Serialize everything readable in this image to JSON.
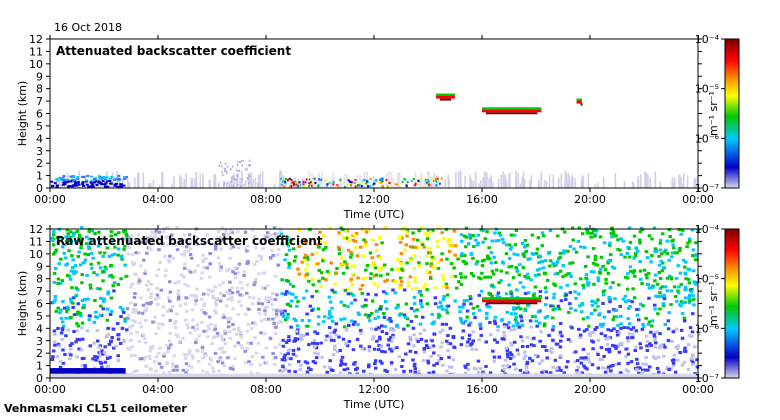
{
  "header": {
    "date": "16 Oct 2018"
  },
  "footer": {
    "instrument": "Vehmasmaki CL51 ceilometer"
  },
  "chart_data": [
    {
      "type": "heatmap",
      "title": "Attenuated backscatter coefficient",
      "xlabel": "Time (UTC)",
      "ylabel": "Height (km)",
      "x_ticks": [
        "00:00",
        "04:00",
        "08:00",
        "12:00",
        "16:00",
        "20:00",
        "00:00"
      ],
      "xlim_hours": [
        0,
        24
      ],
      "y_ticks": [
        0,
        1,
        2,
        3,
        4,
        5,
        6,
        7,
        8,
        9,
        10,
        11,
        12
      ],
      "ylim": [
        0,
        12
      ],
      "colorbar": {
        "label": "m⁻¹ sr⁻¹",
        "scale": "log",
        "range": [
          1e-07,
          0.0001
        ],
        "ticks": [
          "10⁻⁴",
          "10⁻⁵",
          "10⁻⁶",
          "10⁻⁷"
        ],
        "colors": [
          "#d8d8ec",
          "#0000c8",
          "#00c8ff",
          "#00c800",
          "#ffff00",
          "#ff8800",
          "#ff0000",
          "#800000"
        ]
      },
      "features": [
        {
          "name": "boundary layer",
          "x_start_h": 0,
          "x_end_h": 24,
          "y_top_km": 1.2,
          "level": "low"
        },
        {
          "name": "dense aerosol",
          "x_start_h": 0,
          "x_end_h": 2.8,
          "y_top_km": 1.0,
          "level": "mid"
        },
        {
          "name": "cloud",
          "x_start_h": 14.3,
          "x_end_h": 15.0,
          "y_km": 7.2,
          "level": "high"
        },
        {
          "name": "cloud",
          "x_start_h": 16.0,
          "x_end_h": 18.2,
          "y_km": 6.1,
          "level": "high"
        },
        {
          "name": "cloud",
          "x_start_h": 19.5,
          "x_end_h": 19.7,
          "y_km": 6.8,
          "level": "high"
        }
      ]
    },
    {
      "type": "heatmap",
      "title": "Raw attenuated backscatter coefficient",
      "xlabel": "Time (UTC)",
      "ylabel": "Height (km)",
      "x_ticks": [
        "00:00",
        "04:00",
        "08:00",
        "12:00",
        "16:00",
        "20:00",
        "00:00"
      ],
      "xlim_hours": [
        0,
        24
      ],
      "y_ticks": [
        0,
        1,
        2,
        3,
        4,
        5,
        6,
        7,
        8,
        9,
        10,
        11,
        12
      ],
      "ylim": [
        0,
        12
      ],
      "colorbar": {
        "label": "m⁻¹ sr⁻¹",
        "scale": "log",
        "range": [
          1e-07,
          0.0001
        ],
        "ticks": [
          "10⁻⁴",
          "10⁻⁵",
          "10⁻⁶",
          "10⁻⁷"
        ]
      },
      "features": [
        {
          "name": "noise field",
          "x_start_h": 0,
          "x_end_h": 24,
          "level": "mid"
        },
        {
          "name": "low noise band",
          "x_start_h": 2.8,
          "x_end_h": 8.5,
          "level": "low"
        },
        {
          "name": "cloud",
          "x_start_h": 16.0,
          "x_end_h": 18.2,
          "y_km": 6.1,
          "level": "high"
        }
      ]
    }
  ]
}
